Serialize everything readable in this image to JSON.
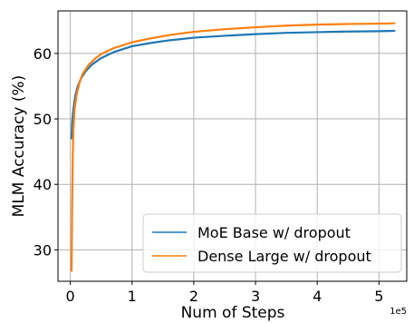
{
  "chart_data": {
    "type": "line",
    "xlabel": "Num of Steps",
    "ylabel": "MLM Accuracy (%)",
    "x_offset_label": "1e5",
    "xlim": [
      -0.2,
      5.45
    ],
    "ylim": [
      25.2,
      66.5
    ],
    "x_ticks": [
      0,
      1,
      2,
      3,
      4,
      5
    ],
    "y_ticks": [
      30,
      40,
      50,
      60
    ],
    "grid": true,
    "legend_position": "lower-right",
    "series": [
      {
        "name": "MoE Base w/ dropout",
        "color": "#1f77b4",
        "x": [
          0.02,
          0.03,
          0.05,
          0.08,
          0.12,
          0.18,
          0.25,
          0.35,
          0.5,
          0.7,
          1.0,
          1.3,
          1.6,
          2.0,
          2.5,
          3.0,
          3.5,
          4.0,
          4.5,
          5.0,
          5.25
        ],
        "y": [
          47.0,
          49.5,
          51.5,
          53.5,
          55.0,
          56.3,
          57.3,
          58.3,
          59.3,
          60.2,
          61.1,
          61.6,
          62.0,
          62.4,
          62.7,
          62.95,
          63.15,
          63.25,
          63.35,
          63.4,
          63.45
        ]
      },
      {
        "name": "Dense Large w/ dropout",
        "color": "#ff7f0e",
        "x": [
          0.02,
          0.025,
          0.03,
          0.04,
          0.05,
          0.07,
          0.1,
          0.15,
          0.2,
          0.3,
          0.4,
          0.5,
          0.7,
          1.0,
          1.3,
          1.6,
          2.0,
          2.5,
          3.0,
          3.5,
          4.0,
          4.5,
          5.0,
          5.25
        ],
        "y": [
          26.8,
          32.0,
          37.5,
          44.5,
          48.5,
          51.5,
          53.6,
          55.6,
          56.9,
          58.3,
          59.2,
          59.9,
          60.8,
          61.7,
          62.3,
          62.8,
          63.3,
          63.7,
          64.0,
          64.25,
          64.4,
          64.5,
          64.55,
          64.6
        ]
      }
    ]
  }
}
